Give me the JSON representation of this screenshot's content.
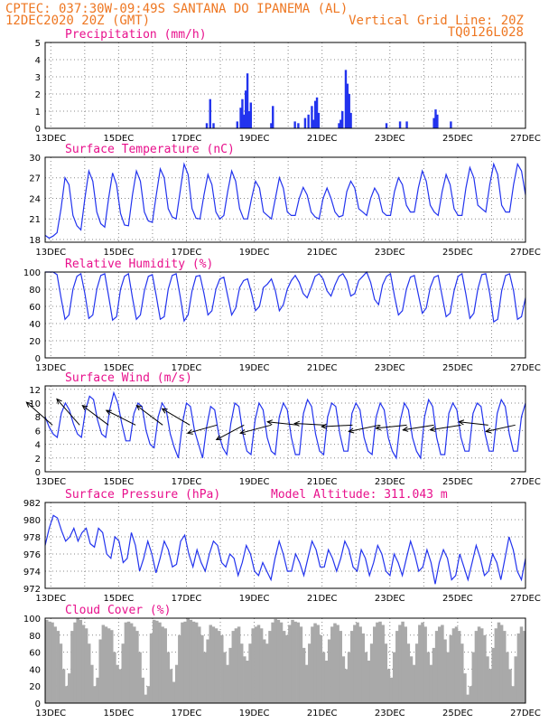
{
  "header": {
    "line1_left": "CPTEC:  037:30W-09:49S  SANTANA DO IPANEMA (AL)",
    "line2_left": "12DEC2020 20Z (GMT)",
    "line2_right": "Vertical Grid Line: 20Z",
    "line3_right": "TQ0126L028"
  },
  "colors": {
    "header": "#ee7722",
    "title": "#e8108c",
    "series": "#2233ee",
    "cloud": "#a9a9a9"
  },
  "x_axis": {
    "day_start": 12.833,
    "day_end": 27.0,
    "tick_days": [
      13,
      15,
      17,
      19,
      21,
      23,
      25,
      27
    ],
    "tick_labels": [
      "13DEC",
      "15DEC",
      "17DEC",
      "19DEC",
      "21DEC",
      "23DEC",
      "25DEC",
      "27DEC"
    ]
  },
  "chart_data": [
    {
      "type": "bar",
      "id": "precip",
      "title": "Precipitation (mm/h)",
      "ylim": [
        0,
        5
      ],
      "yticks": [
        0,
        1,
        2,
        3,
        4,
        5
      ],
      "x": [
        17.6,
        17.7,
        17.8,
        18.5,
        18.6,
        18.65,
        18.7,
        18.75,
        18.8,
        18.85,
        18.9,
        19.5,
        19.55,
        20.2,
        20.3,
        20.5,
        20.6,
        20.7,
        20.75,
        20.8,
        20.85,
        20.9,
        21.5,
        21.55,
        21.6,
        21.7,
        21.75,
        21.8,
        21.85,
        22.9,
        23.3,
        23.5,
        24.3,
        24.35,
        24.4,
        24.8
      ],
      "values": [
        0.3,
        1.7,
        0.3,
        0.4,
        1.2,
        1.7,
        0.8,
        2.2,
        3.2,
        1.0,
        1.5,
        0.3,
        1.3,
        0.4,
        0.3,
        0.6,
        0.8,
        1.3,
        0.5,
        1.6,
        1.8,
        0.9,
        0.3,
        0.5,
        1.0,
        3.4,
        2.6,
        2.0,
        0.9,
        0.3,
        0.4,
        0.4,
        0.6,
        1.1,
        0.8,
        0.4
      ]
    },
    {
      "type": "line",
      "id": "temp",
      "title": "Surface Temperature (nC)",
      "ylim": [
        17.6,
        30
      ],
      "yticks": [
        18,
        21,
        24,
        27,
        30
      ],
      "series": [
        {
          "values": [
            18.6,
            18.2,
            18.5,
            19.0,
            22.5,
            27.0,
            26.0,
            21.5,
            20.0,
            19.4,
            24.0,
            28.0,
            26.5,
            22.0,
            20.3,
            19.8,
            24.0,
            27.7,
            26.0,
            21.8,
            20.1,
            20.0,
            24.5,
            28.0,
            26.5,
            22.0,
            20.7,
            20.5,
            24.5,
            28.3,
            27.0,
            22.5,
            21.3,
            21.0,
            25.0,
            29.0,
            27.5,
            22.5,
            21.1,
            21.0,
            24.5,
            27.5,
            26.0,
            22.0,
            21.0,
            21.5,
            25.0,
            28.0,
            26.5,
            22.5,
            21.0,
            21.0,
            24.0,
            26.5,
            25.5,
            22.0,
            21.5,
            21.0,
            24.0,
            27.0,
            25.5,
            22.0,
            21.5,
            21.5,
            24.0,
            25.6,
            24.5,
            22.0,
            21.3,
            21.0,
            24.0,
            25.5,
            24.0,
            22.0,
            21.3,
            21.5,
            25.0,
            26.5,
            25.5,
            22.5,
            22.0,
            21.5,
            24.0,
            25.5,
            24.5,
            22.0,
            21.5,
            21.5,
            25.0,
            27.0,
            26.0,
            23.0,
            22.0,
            22.0,
            25.5,
            28.0,
            26.5,
            23.0,
            22.0,
            21.5,
            25.0,
            27.5,
            26.0,
            22.5,
            21.5,
            21.5,
            25.5,
            28.5,
            27.0,
            23.0,
            22.5,
            22.0,
            26.0,
            29.0,
            27.5,
            23.0,
            22.0,
            22.0,
            26.0,
            29.0,
            28.0,
            24.5
          ]
        }
      ]
    },
    {
      "type": "line",
      "id": "rh",
      "title": "Relative Humidity (%)",
      "ylim": [
        0,
        100
      ],
      "yticks": [
        0,
        20,
        40,
        60,
        80,
        100
      ],
      "series": [
        {
          "values": [
            100,
            100,
            100,
            97,
            70,
            45,
            50,
            80,
            95,
            98,
            75,
            46,
            50,
            80,
            96,
            98,
            72,
            44,
            48,
            80,
            95,
            98,
            70,
            45,
            50,
            78,
            95,
            97,
            72,
            45,
            48,
            80,
            96,
            98,
            72,
            43,
            50,
            78,
            95,
            96,
            75,
            50,
            55,
            80,
            92,
            94,
            72,
            50,
            58,
            82,
            90,
            92,
            75,
            55,
            60,
            82,
            86,
            92,
            78,
            55,
            62,
            80,
            90,
            96,
            88,
            75,
            70,
            82,
            95,
            98,
            92,
            78,
            72,
            85,
            95,
            98,
            90,
            72,
            75,
            90,
            95,
            100,
            88,
            68,
            62,
            85,
            95,
            98,
            72,
            50,
            55,
            80,
            94,
            96,
            74,
            52,
            58,
            82,
            94,
            96,
            72,
            48,
            52,
            78,
            95,
            98,
            74,
            46,
            52,
            80,
            97,
            98,
            75,
            42,
            45,
            78,
            96,
            98,
            78,
            45,
            48,
            70
          ]
        }
      ]
    },
    {
      "type": "line",
      "id": "wind",
      "title": "Surface Wind (m/s)",
      "ylim": [
        0,
        12.5
      ],
      "yticks": [
        0,
        2,
        4,
        6,
        8,
        10,
        12
      ],
      "series": [
        {
          "values": [
            8.0,
            6.5,
            5.5,
            5.0,
            8.5,
            10.0,
            9.0,
            7.0,
            5.5,
            5.0,
            9.0,
            11.0,
            10.5,
            7.5,
            5.5,
            5.0,
            9.0,
            11.5,
            10.0,
            7.0,
            4.5,
            4.5,
            8.5,
            10.0,
            9.5,
            6.0,
            4.0,
            3.5,
            8.0,
            10.0,
            9.0,
            5.5,
            3.5,
            2.0,
            7.0,
            10.0,
            9.5,
            6.0,
            4.0,
            2.0,
            6.5,
            9.5,
            9.0,
            5.5,
            3.5,
            2.5,
            7.0,
            10.0,
            9.5,
            5.5,
            3.0,
            2.5,
            7.5,
            10.0,
            9.0,
            5.0,
            3.0,
            2.5,
            8.0,
            10.0,
            9.0,
            5.0,
            2.5,
            2.5,
            8.5,
            10.5,
            9.5,
            5.5,
            3.0,
            2.5,
            8.0,
            10.0,
            9.5,
            5.5,
            3.0,
            3.0,
            8.5,
            10.0,
            9.0,
            5.0,
            3.0,
            2.5,
            8.0,
            10.0,
            9.0,
            5.0,
            3.0,
            2.0,
            7.5,
            10.0,
            9.0,
            5.0,
            3.0,
            2.0,
            8.0,
            10.5,
            9.5,
            5.0,
            2.5,
            2.5,
            8.5,
            10.0,
            9.0,
            5.0,
            3.0,
            3.0,
            8.5,
            10.0,
            9.5,
            5.5,
            3.0,
            3.0,
            8.5,
            10.5,
            9.5,
            5.5,
            3.0,
            3.0,
            8.0,
            10.0
          ]
        }
      ],
      "vectors": [
        {
          "x": 13.05,
          "u": -1.6,
          "v": 1.4
        },
        {
          "x": 13.85,
          "u": -1.4,
          "v": 1.6
        },
        {
          "x": 14.7,
          "u": -1.6,
          "v": 1.2
        },
        {
          "x": 15.5,
          "u": -1.8,
          "v": 0.9
        },
        {
          "x": 16.3,
          "u": -1.6,
          "v": 1.2
        },
        {
          "x": 17.1,
          "u": -1.7,
          "v": 1.0
        },
        {
          "x": 17.9,
          "u": -1.8,
          "v": -0.5
        },
        {
          "x": 18.7,
          "u": -1.7,
          "v": -0.9
        },
        {
          "x": 19.5,
          "u": -1.9,
          "v": -0.5
        },
        {
          "x": 20.3,
          "u": -1.9,
          "v": 0.2
        },
        {
          "x": 21.1,
          "u": -1.9,
          "v": 0.1
        },
        {
          "x": 21.9,
          "u": -1.9,
          "v": -0.1
        },
        {
          "x": 22.7,
          "u": -1.9,
          "v": -0.4
        },
        {
          "x": 23.5,
          "u": -1.9,
          "v": -0.2
        },
        {
          "x": 24.3,
          "u": -1.9,
          "v": -0.3
        },
        {
          "x": 25.1,
          "u": -1.9,
          "v": -0.3
        },
        {
          "x": 25.9,
          "u": -1.8,
          "v": 0.2
        },
        {
          "x": 26.7,
          "u": -1.8,
          "v": -0.4
        }
      ]
    },
    {
      "type": "line",
      "id": "pres",
      "title": "Surface Pressure (hPa)",
      "subtitle": "Model Altitude: 311.043 m",
      "ylim": [
        972,
        982
      ],
      "yticks": [
        972,
        974,
        976,
        978,
        980,
        982
      ],
      "series": [
        {
          "values": [
            977.0,
            979.0,
            980.5,
            980.2,
            978.7,
            977.5,
            978.0,
            979.0,
            977.5,
            978.5,
            979.0,
            977.2,
            976.8,
            979.0,
            978.5,
            976.0,
            975.5,
            978.0,
            977.5,
            975.0,
            975.5,
            978.5,
            977.0,
            974.0,
            975.5,
            977.5,
            976.0,
            973.8,
            975.5,
            977.5,
            976.5,
            974.5,
            974.8,
            977.5,
            978.2,
            976.0,
            974.5,
            976.5,
            975.0,
            974.0,
            976.0,
            977.5,
            977.0,
            975.0,
            974.5,
            976.0,
            975.5,
            973.5,
            975.0,
            977.0,
            976.0,
            974.0,
            973.5,
            975.0,
            974.0,
            973.0,
            975.5,
            977.5,
            976.0,
            974.0,
            974.0,
            976.0,
            975.0,
            973.5,
            975.5,
            977.5,
            976.5,
            974.5,
            974.5,
            976.5,
            975.5,
            974.0,
            975.5,
            977.5,
            976.5,
            974.5,
            974.0,
            976.5,
            975.5,
            973.5,
            975.0,
            977.0,
            976.0,
            974.0,
            973.5,
            976.0,
            975.0,
            973.5,
            975.5,
            977.5,
            976.0,
            974.0,
            974.5,
            976.5,
            975.0,
            972.5,
            975.0,
            976.5,
            975.5,
            973.0,
            973.5,
            976.0,
            974.5,
            973.0,
            975.0,
            977.0,
            975.5,
            973.5,
            974.0,
            976.0,
            975.0,
            973.0,
            975.5,
            978.0,
            976.5,
            974.0,
            973.0,
            975.5
          ]
        }
      ]
    },
    {
      "type": "area",
      "id": "cloud",
      "title": "Cloud Cover (%)",
      "ylim": [
        0,
        100
      ],
      "yticks": [
        0,
        20,
        40,
        60,
        80,
        100
      ],
      "series": [
        {
          "values": [
            98,
            96,
            95,
            90,
            85,
            70,
            40,
            20,
            35,
            85,
            95,
            100,
            98,
            92,
            88,
            70,
            45,
            20,
            30,
            75,
            92,
            90,
            88,
            86,
            60,
            45,
            40,
            70,
            95,
            96,
            94,
            90,
            85,
            60,
            30,
            10,
            20,
            82,
            98,
            97,
            95,
            90,
            88,
            60,
            40,
            25,
            45,
            80,
            95,
            96,
            100,
            98,
            96,
            95,
            90,
            80,
            60,
            75,
            92,
            90,
            88,
            85,
            80,
            60,
            45,
            65,
            85,
            88,
            90,
            70,
            55,
            50,
            70,
            88,
            90,
            92,
            88,
            75,
            70,
            85,
            95,
            99,
            98,
            95,
            85,
            80,
            92,
            98,
            96,
            95,
            90,
            65,
            45,
            70,
            90,
            94,
            92,
            80,
            60,
            50,
            75,
            90,
            94,
            92,
            85,
            55,
            40,
            60,
            85,
            92,
            95,
            90,
            82,
            60,
            50,
            70,
            90,
            95,
            96,
            92,
            70,
            40,
            30,
            60,
            85,
            92,
            96,
            90,
            70,
            55,
            45,
            70,
            92,
            95,
            90,
            60,
            45,
            65,
            85,
            90,
            92,
            75,
            60,
            80,
            88,
            90,
            85,
            70,
            35,
            10,
            20,
            60,
            85,
            90,
            88,
            80,
            55,
            40,
            65,
            88,
            95,
            92,
            85,
            60,
            40,
            20,
            55,
            82,
            90,
            85
          ]
        }
      ]
    }
  ]
}
